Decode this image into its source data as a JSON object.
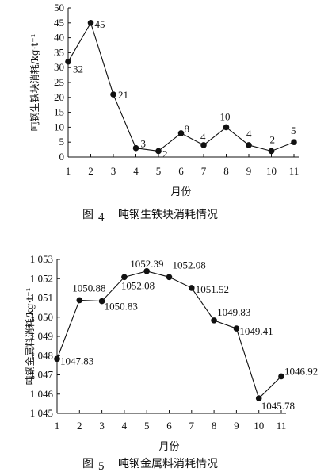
{
  "chart_data": [
    {
      "type": "line",
      "caption_fig": "图",
      "caption_num": "4",
      "caption_text": "吨钢生铁块消耗情况",
      "xlabel": "月份",
      "ylabel": "吨钢生铁块消耗/kg·t⁻¹",
      "x": [
        1,
        2,
        3,
        4,
        5,
        6,
        7,
        8,
        9,
        10,
        11
      ],
      "xlim": [
        1,
        11
      ],
      "ylim": [
        0,
        50
      ],
      "yticks": [
        0,
        5,
        10,
        15,
        20,
        25,
        30,
        35,
        40,
        45,
        50
      ],
      "ytick_labels": [
        "0",
        "5",
        "10",
        "15",
        "20",
        "25",
        "30",
        "35",
        "40",
        "45",
        "50"
      ],
      "values": [
        32,
        45,
        21,
        3,
        2,
        8,
        4,
        10,
        4,
        2,
        5
      ],
      "data_labels": [
        "32",
        "45",
        "21",
        "3",
        "2",
        "8",
        "4",
        "10",
        "4",
        "2",
        "5"
      ],
      "grid": false
    },
    {
      "type": "line",
      "caption_fig": "图",
      "caption_num": "5",
      "caption_text": "吨钢金属料消耗情况",
      "xlabel": "月份",
      "ylabel": "吨钢金属料消耗/kg·t⁻¹",
      "x": [
        1,
        2,
        3,
        4,
        5,
        6,
        7,
        8,
        9,
        10,
        11
      ],
      "xlim": [
        1,
        11
      ],
      "ylim": [
        1045,
        1053
      ],
      "yticks": [
        1045,
        1046,
        1047,
        1048,
        1049,
        1050,
        1051,
        1052,
        1053
      ],
      "ytick_labels": [
        "1 045",
        "1 046",
        "1 047",
        "1 048",
        "1 049",
        "1 050",
        "1 051",
        "1 052",
        "1 053"
      ],
      "values": [
        1047.83,
        1050.88,
        1050.83,
        1052.08,
        1052.39,
        1052.08,
        1051.52,
        1049.83,
        1049.41,
        1045.78,
        1046.92
      ],
      "data_labels": [
        "1047.83",
        "1050.88",
        "1050.83",
        "1052.08",
        "1052.39",
        "1052.08",
        "1051.52",
        "1049.83",
        "1049.41",
        "1045.78",
        "1046.92"
      ],
      "grid": false
    }
  ]
}
